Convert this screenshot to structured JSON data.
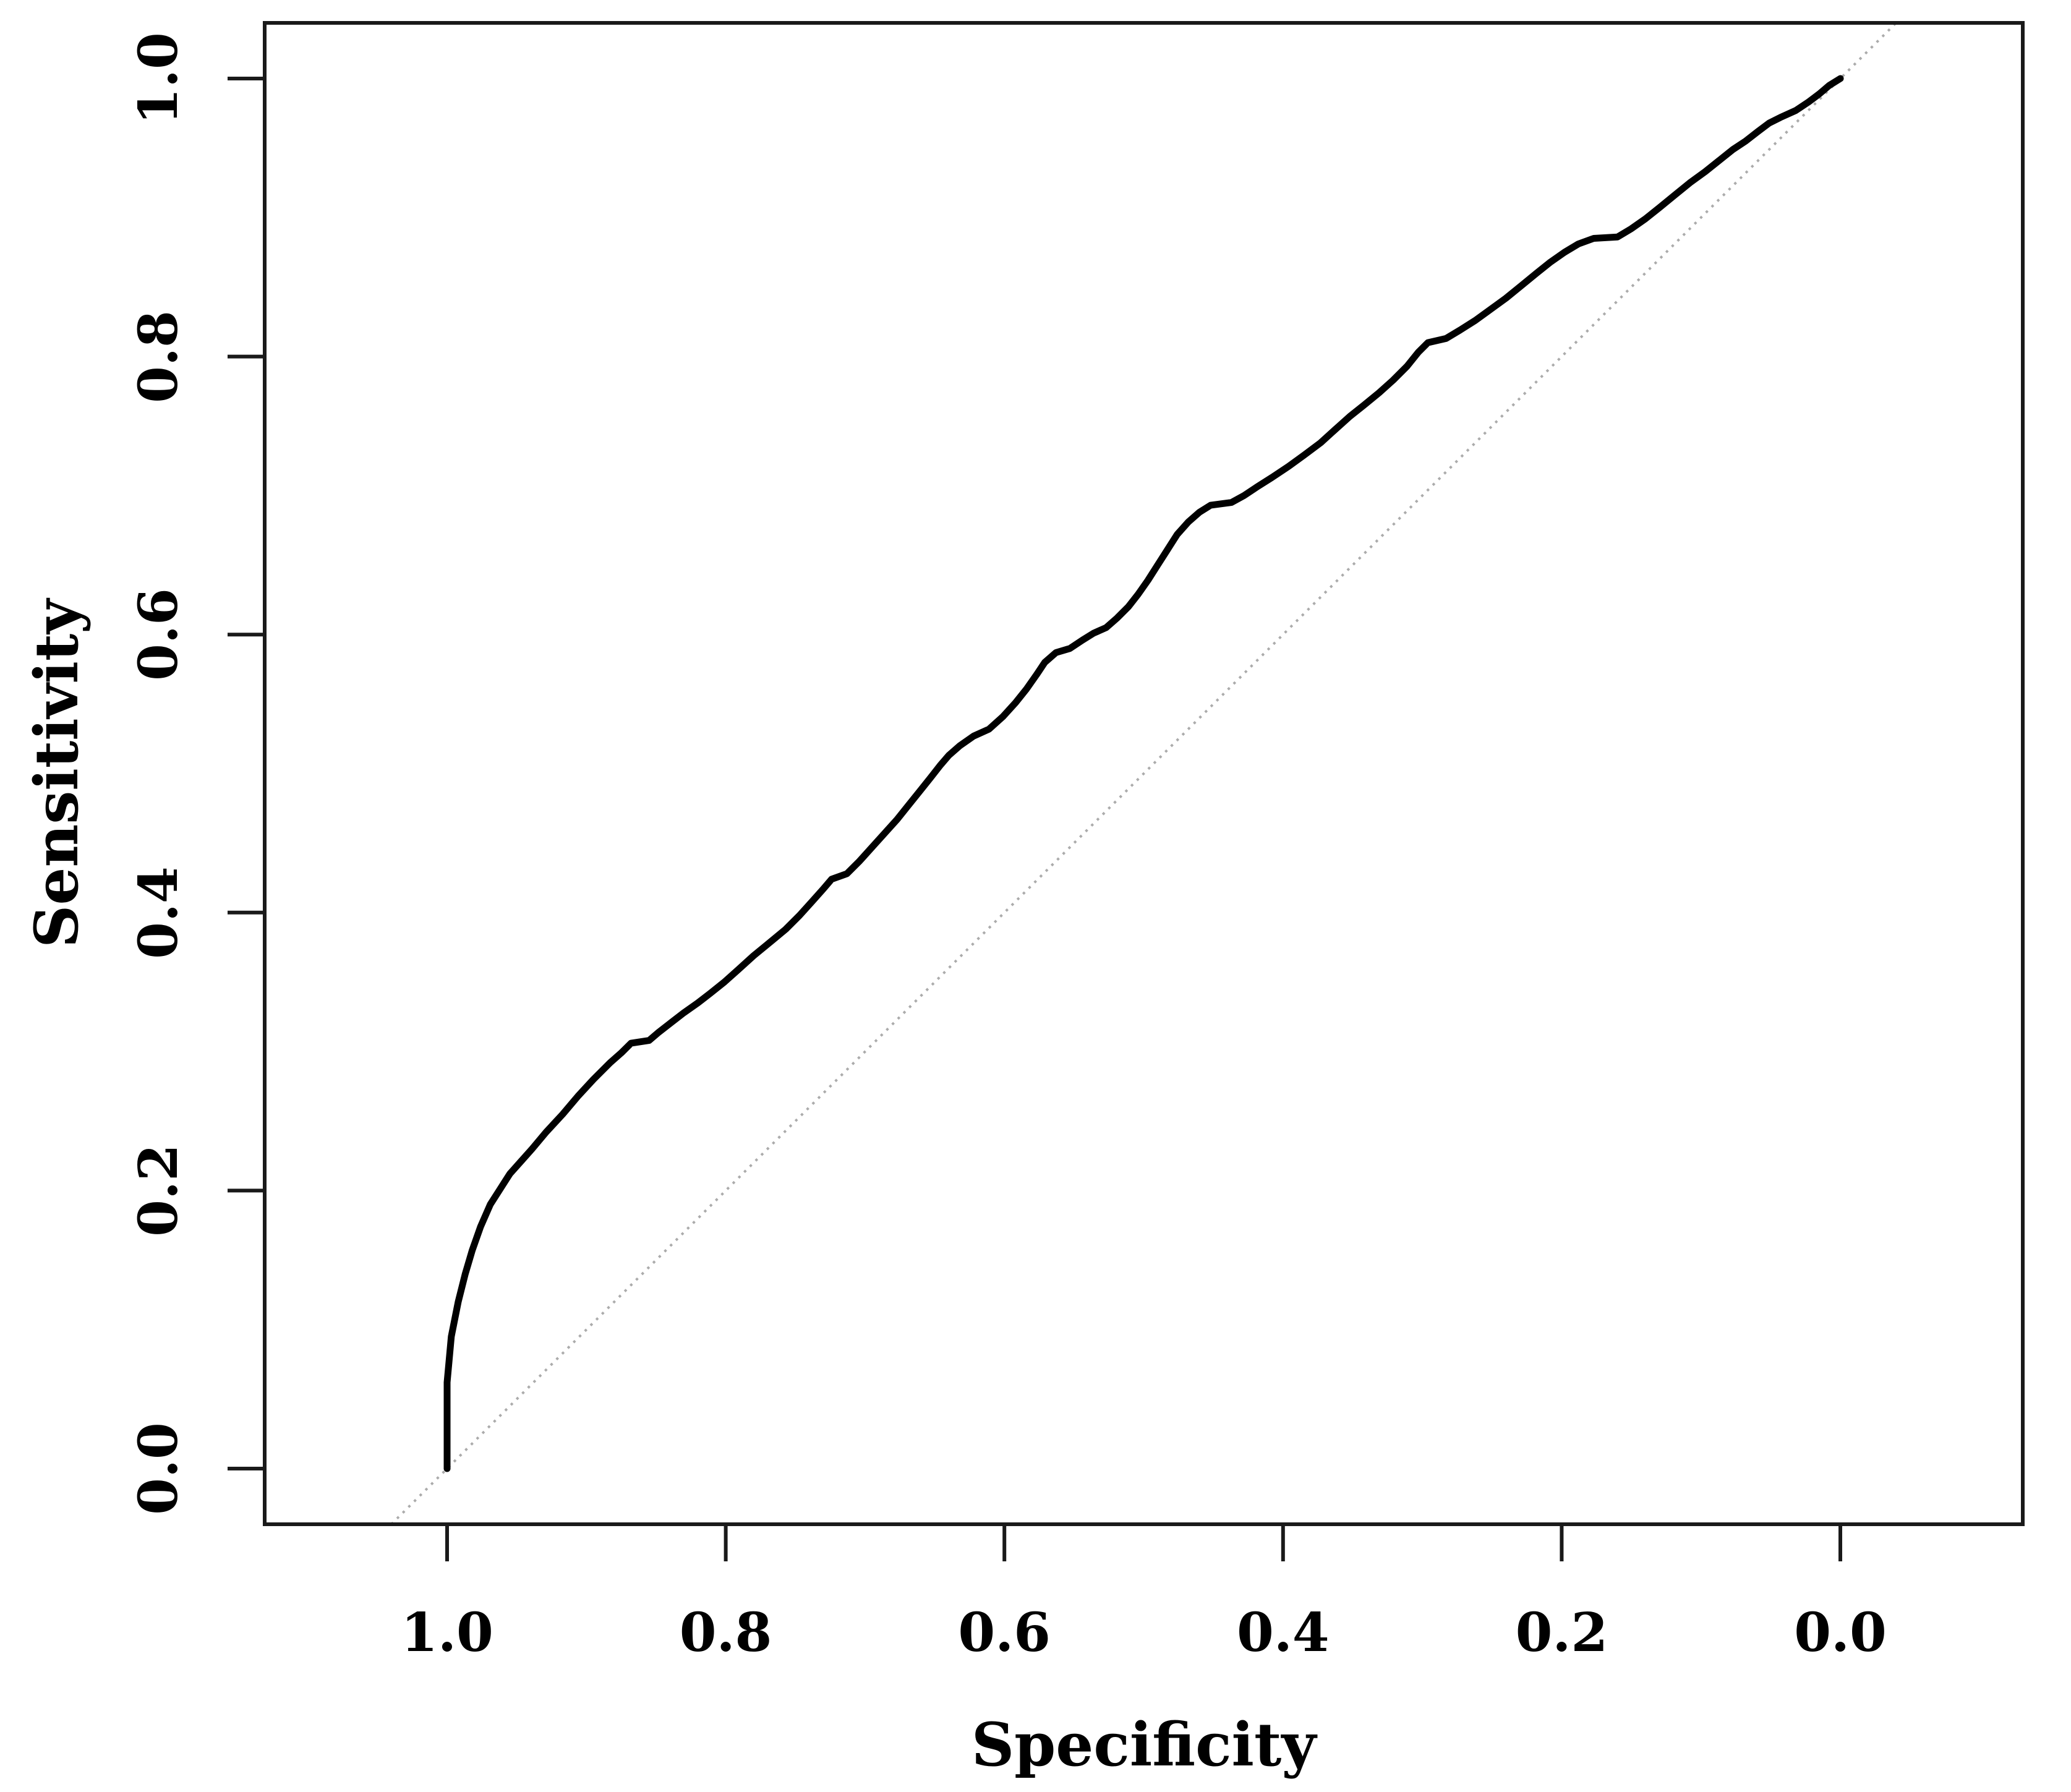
{
  "chart_data": {
    "type": "line",
    "title": "",
    "xlabel": "Specificity",
    "ylabel": "Sensitivity",
    "x_axis_reversed": true,
    "grid": false,
    "legend": "none",
    "xlim": [
      1.131,
      -0.131
    ],
    "ylim": [
      -0.04,
      1.04
    ],
    "x_tick_values": [
      1.0,
      0.8,
      0.6,
      0.4,
      0.2,
      0.0
    ],
    "x_tick_labels": [
      "1.0",
      "0.8",
      "0.6",
      "0.4",
      "0.2",
      "0.0"
    ],
    "y_tick_values": [
      0.0,
      0.2,
      0.4,
      0.6,
      0.8,
      1.0
    ],
    "y_tick_labels": [
      "0.0",
      "0.2",
      "0.4",
      "0.6",
      "0.8",
      "1.0"
    ],
    "colors": {
      "curve": "#000000",
      "reference_line": "#ababab",
      "frame": "#1a1a1a",
      "background": "#ffffff"
    },
    "reference_line": {
      "name": "chance-diagonal",
      "style": "dotted",
      "points": [
        [
          1.04,
          -0.04
        ],
        [
          -0.04,
          1.04
        ]
      ]
    },
    "series": [
      {
        "name": "ROC curve",
        "x_name": "specificity",
        "y_name": "sensitivity",
        "points": [
          [
            1.0,
            0.0
          ],
          [
            1.0,
            0.062
          ],
          [
            0.997,
            0.095
          ],
          [
            0.992,
            0.12
          ],
          [
            0.987,
            0.14
          ],
          [
            0.982,
            0.157
          ],
          [
            0.976,
            0.174
          ],
          [
            0.969,
            0.19
          ],
          [
            0.962,
            0.201
          ],
          [
            0.955,
            0.212
          ],
          [
            0.947,
            0.221
          ],
          [
            0.939,
            0.23
          ],
          [
            0.929,
            0.242
          ],
          [
            0.917,
            0.255
          ],
          [
            0.906,
            0.268
          ],
          [
            0.895,
            0.28
          ],
          [
            0.883,
            0.292
          ],
          [
            0.875,
            0.299
          ],
          [
            0.868,
            0.306
          ],
          [
            0.855,
            0.308
          ],
          [
            0.848,
            0.314
          ],
          [
            0.839,
            0.321
          ],
          [
            0.83,
            0.328
          ],
          [
            0.82,
            0.335
          ],
          [
            0.811,
            0.342
          ],
          [
            0.801,
            0.35
          ],
          [
            0.791,
            0.359
          ],
          [
            0.78,
            0.369
          ],
          [
            0.769,
            0.378
          ],
          [
            0.757,
            0.388
          ],
          [
            0.747,
            0.398
          ],
          [
            0.738,
            0.408
          ],
          [
            0.73,
            0.417
          ],
          [
            0.724,
            0.424
          ],
          [
            0.713,
            0.428
          ],
          [
            0.704,
            0.437
          ],
          [
            0.695,
            0.447
          ],
          [
            0.686,
            0.457
          ],
          [
            0.677,
            0.467
          ],
          [
            0.669,
            0.477
          ],
          [
            0.661,
            0.487
          ],
          [
            0.653,
            0.497
          ],
          [
            0.646,
            0.506
          ],
          [
            0.64,
            0.513
          ],
          [
            0.632,
            0.52
          ],
          [
            0.622,
            0.527
          ],
          [
            0.611,
            0.532
          ],
          [
            0.601,
            0.541
          ],
          [
            0.592,
            0.551
          ],
          [
            0.584,
            0.561
          ],
          [
            0.577,
            0.571
          ],
          [
            0.571,
            0.58
          ],
          [
            0.563,
            0.587
          ],
          [
            0.553,
            0.59
          ],
          [
            0.544,
            0.596
          ],
          [
            0.536,
            0.601
          ],
          [
            0.527,
            0.605
          ],
          [
            0.519,
            0.612
          ],
          [
            0.511,
            0.62
          ],
          [
            0.504,
            0.629
          ],
          [
            0.497,
            0.639
          ],
          [
            0.49,
            0.65
          ],
          [
            0.483,
            0.661
          ],
          [
            0.476,
            0.672
          ],
          [
            0.468,
            0.681
          ],
          [
            0.46,
            0.688
          ],
          [
            0.452,
            0.693
          ],
          [
            0.437,
            0.695
          ],
          [
            0.428,
            0.7
          ],
          [
            0.419,
            0.706
          ],
          [
            0.408,
            0.713
          ],
          [
            0.396,
            0.721
          ],
          [
            0.385,
            0.729
          ],
          [
            0.373,
            0.738
          ],
          [
            0.362,
            0.748
          ],
          [
            0.352,
            0.757
          ],
          [
            0.342,
            0.765
          ],
          [
            0.331,
            0.774
          ],
          [
            0.321,
            0.783
          ],
          [
            0.311,
            0.793
          ],
          [
            0.303,
            0.803
          ],
          [
            0.296,
            0.81
          ],
          [
            0.283,
            0.813
          ],
          [
            0.273,
            0.819
          ],
          [
            0.262,
            0.826
          ],
          [
            0.251,
            0.834
          ],
          [
            0.24,
            0.842
          ],
          [
            0.229,
            0.851
          ],
          [
            0.218,
            0.86
          ],
          [
            0.208,
            0.868
          ],
          [
            0.198,
            0.875
          ],
          [
            0.188,
            0.881
          ],
          [
            0.177,
            0.885
          ],
          [
            0.16,
            0.886
          ],
          [
            0.15,
            0.892
          ],
          [
            0.14,
            0.899
          ],
          [
            0.13,
            0.907
          ],
          [
            0.119,
            0.916
          ],
          [
            0.108,
            0.925
          ],
          [
            0.097,
            0.933
          ],
          [
            0.087,
            0.941
          ],
          [
            0.077,
            0.949
          ],
          [
            0.068,
            0.955
          ],
          [
            0.059,
            0.962
          ],
          [
            0.051,
            0.968
          ],
          [
            0.043,
            0.972
          ],
          [
            0.032,
            0.977
          ],
          [
            0.023,
            0.983
          ],
          [
            0.015,
            0.989
          ],
          [
            0.008,
            0.995
          ],
          [
            0.0,
            1.0
          ]
        ]
      }
    ]
  }
}
